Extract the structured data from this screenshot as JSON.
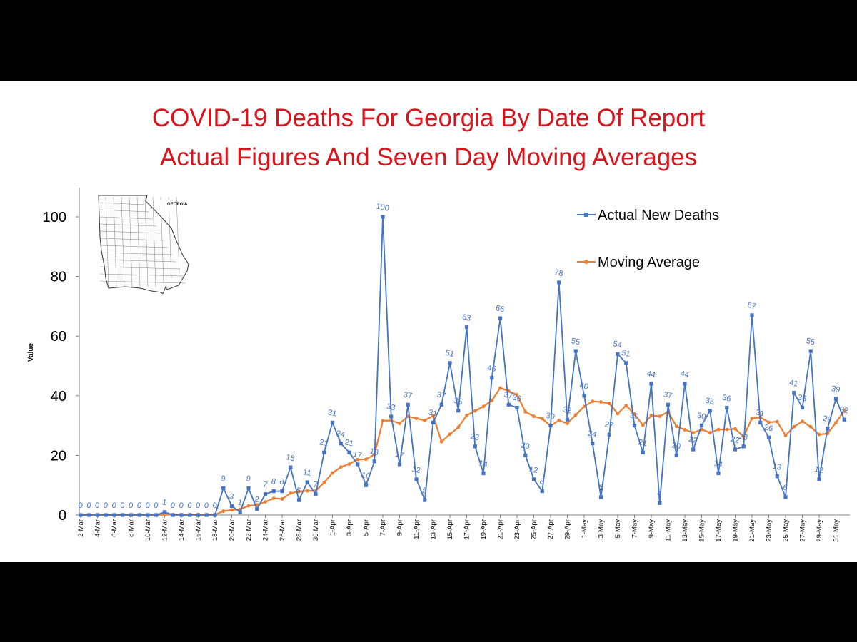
{
  "colors": {
    "actual": "#4472c4",
    "average": "#ed7d31",
    "title": "#d9141b",
    "axis": "#7f7f7f"
  },
  "map_label": "GEORGIA",
  "chart_data": {
    "type": "line",
    "title": "COVID-19 Deaths For Georgia By Date Of Report",
    "subtitle": "Actual Figures And Seven Day Moving Averages",
    "xlabel": "",
    "ylabel": "Value",
    "ylim": [
      0,
      100
    ],
    "yticks": [
      0,
      20,
      40,
      60,
      80,
      100
    ],
    "grid": false,
    "legend_position": "top-right",
    "x": [
      "2-Mar",
      "3-Mar",
      "4-Mar",
      "5-Mar",
      "6-Mar",
      "7-Mar",
      "8-Mar",
      "9-Mar",
      "10-Mar",
      "11-Mar",
      "12-Mar",
      "13-Mar",
      "14-Mar",
      "15-Mar",
      "16-Mar",
      "17-Mar",
      "18-Mar",
      "19-Mar",
      "20-Mar",
      "21-Mar",
      "22-Mar",
      "23-Mar",
      "24-Mar",
      "25-Mar",
      "26-Mar",
      "27-Mar",
      "28-Mar",
      "29-Mar",
      "30-Mar",
      "31-Mar",
      "1-Apr",
      "2-Apr",
      "3-Apr",
      "4-Apr",
      "5-Apr",
      "6-Apr",
      "7-Apr",
      "8-Apr",
      "9-Apr",
      "10-Apr",
      "11-Apr",
      "12-Apr",
      "13-Apr",
      "14-Apr",
      "15-Apr",
      "16-Apr",
      "17-Apr",
      "18-Apr",
      "19-Apr",
      "20-Apr",
      "21-Apr",
      "22-Apr",
      "23-Apr",
      "24-Apr",
      "25-Apr",
      "26-Apr",
      "27-Apr",
      "28-Apr",
      "29-Apr",
      "30-Apr",
      "1-May",
      "2-May",
      "3-May",
      "4-May",
      "5-May",
      "6-May",
      "7-May",
      "8-May",
      "9-May",
      "10-May",
      "11-May",
      "12-May",
      "13-May",
      "14-May",
      "15-May",
      "16-May",
      "17-May",
      "18-May",
      "19-May",
      "20-May",
      "21-May",
      "22-May",
      "23-May",
      "24-May",
      "25-May",
      "26-May",
      "27-May",
      "28-May",
      "29-May",
      "30-May",
      "31-May",
      "1-Jun"
    ],
    "x_tick_labels": [
      "2-Mar",
      "4-Mar",
      "6-Mar",
      "8-Mar",
      "10-Mar",
      "12-Mar",
      "14-Mar",
      "16-Mar",
      "18-Mar",
      "20-Mar",
      "22-Mar",
      "24-Mar",
      "26-Mar",
      "28-Mar",
      "30-Mar",
      "1-Apr",
      "3-Apr",
      "5-Apr",
      "7-Apr",
      "9-Apr",
      "11-Apr",
      "13-Apr",
      "15-Apr",
      "17-Apr",
      "19-Apr",
      "21-Apr",
      "23-Apr",
      "25-Apr",
      "27-Apr",
      "29-Apr",
      "1-May",
      "3-May",
      "5-May",
      "7-May",
      "9-May",
      "11-May",
      "13-May",
      "15-May",
      "17-May",
      "19-May",
      "21-May",
      "23-May",
      "25-May",
      "27-May",
      "29-May",
      "31-May"
    ],
    "series": [
      {
        "name": "Actual New Deaths",
        "values": [
          0,
          0,
          0,
          0,
          0,
          0,
          0,
          0,
          0,
          0,
          1,
          0,
          0,
          0,
          0,
          0,
          0,
          9,
          3,
          1,
          9,
          2,
          7,
          8,
          8,
          16,
          5,
          11,
          7,
          21,
          31,
          24,
          21,
          17,
          10,
          18,
          100,
          33,
          17,
          37,
          12,
          5,
          31,
          37,
          51,
          35,
          63,
          23,
          14,
          46,
          66,
          37,
          36,
          20,
          12,
          8,
          30,
          78,
          32,
          55,
          40,
          24,
          6,
          27,
          54,
          51,
          30,
          21,
          44,
          4,
          37,
          20,
          44,
          22,
          30,
          35,
          14,
          36,
          22,
          23,
          67,
          31,
          26,
          13,
          6,
          41,
          36,
          55,
          12,
          29,
          39,
          32
        ]
      },
      {
        "name": "Moving Average",
        "values": [
          0,
          0,
          0,
          0,
          0,
          0,
          0,
          0,
          0,
          0,
          0.1,
          0.1,
          0.1,
          0.1,
          0.1,
          0.1,
          0.1,
          1.3,
          1.7,
          1.9,
          3.1,
          3.4,
          4.4,
          5.6,
          5.4,
          7.3,
          7.9,
          8.1,
          8.1,
          10.9,
          14.1,
          16.1,
          17.1,
          18.6,
          18.7,
          20.3,
          31.6,
          31.7,
          30.7,
          33.1,
          32.4,
          31.7,
          33.3,
          24.6,
          27.1,
          29.4,
          33.4,
          34.9,
          36.4,
          38.4,
          42.6,
          41.6,
          40.3,
          34.6,
          33.1,
          32.3,
          29.9,
          31.7,
          30.7,
          33.6,
          36.4,
          38.1,
          37.9,
          37.4,
          34.0,
          36.7,
          33.9,
          30.1,
          33.4,
          33.1,
          34.6,
          29.7,
          28.6,
          27.6,
          28.7,
          27.6,
          28.7,
          28.7,
          28.9,
          26.3,
          32.4,
          32.7,
          31.1,
          31.3,
          26.7,
          29.6,
          31.4,
          29.6,
          27.0,
          27.3,
          31.0,
          35.0
        ]
      }
    ]
  }
}
